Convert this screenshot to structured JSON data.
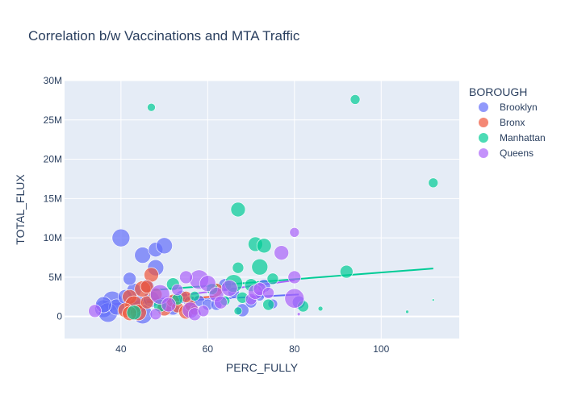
{
  "chart_data": {
    "type": "scatter",
    "title": "Correlation b/w Vaccinations and MTA Traffic",
    "xlabel": "PERC_FULLY",
    "ylabel": "TOTAL_FLUX",
    "xlim": [
      27,
      118
    ],
    "ylim": [
      -2800000,
      30000000
    ],
    "x_ticks": [
      40,
      60,
      80,
      100
    ],
    "x_tick_labels": [
      "40",
      "60",
      "80",
      "100"
    ],
    "y_ticks": [
      0,
      5000000,
      10000000,
      15000000,
      20000000,
      25000000,
      30000000
    ],
    "y_tick_labels": [
      "0",
      "5M",
      "10M",
      "15M",
      "20M",
      "25M",
      "30M"
    ],
    "grid": true,
    "legend": {
      "title": "BOROUGH",
      "placement": "right"
    },
    "series": [
      {
        "name": "Brooklyn",
        "color": "#636efa",
        "points": [
          [
            40,
            10000000,
            11
          ],
          [
            45,
            7800000,
            10
          ],
          [
            48,
            8500000,
            9
          ],
          [
            50,
            9000000,
            10
          ],
          [
            48,
            6200000,
            10
          ],
          [
            43,
            3300000,
            9
          ],
          [
            38,
            2000000,
            12
          ],
          [
            36,
            1000000,
            11
          ],
          [
            37,
            500000,
            12
          ],
          [
            39,
            1200000,
            10
          ],
          [
            41,
            2500000,
            9
          ],
          [
            44,
            1500000,
            11
          ],
          [
            45,
            300000,
            12
          ],
          [
            47,
            2200000,
            10
          ],
          [
            50,
            1500000,
            9
          ],
          [
            52,
            1000000,
            8
          ],
          [
            54,
            2500000,
            8
          ],
          [
            56,
            1800000,
            8
          ],
          [
            58,
            2000000,
            7
          ],
          [
            60,
            1500000,
            7
          ],
          [
            62,
            1500000,
            7
          ],
          [
            64,
            4000000,
            8
          ],
          [
            66,
            3000000,
            7
          ],
          [
            68,
            800000,
            8
          ],
          [
            70,
            1800000,
            7
          ],
          [
            72,
            2600000,
            6
          ],
          [
            73,
            3900000,
            8
          ],
          [
            75,
            1600000,
            6
          ],
          [
            81,
            1800000,
            8
          ],
          [
            42,
            4800000,
            8
          ],
          [
            46,
            3800000,
            9
          ],
          [
            36,
            1500000,
            10
          ]
        ],
        "trend": [
          [
            36,
            1500000
          ],
          [
            81,
            2800000
          ]
        ]
      },
      {
        "name": "Bronx",
        "color": "#ef553b",
        "points": [
          [
            47,
            5300000,
            9
          ],
          [
            45,
            3500000,
            10
          ],
          [
            42,
            2500000,
            9
          ],
          [
            43,
            1500000,
            11
          ],
          [
            41,
            800000,
            9
          ],
          [
            44,
            500000,
            10
          ],
          [
            46,
            1800000,
            8
          ],
          [
            48,
            2800000,
            8
          ],
          [
            50,
            1000000,
            9
          ],
          [
            52,
            2000000,
            8
          ],
          [
            53,
            1200000,
            7
          ],
          [
            55,
            600000,
            9
          ],
          [
            56,
            1400000,
            7
          ],
          [
            55,
            2500000,
            7
          ],
          [
            57,
            800000,
            6
          ],
          [
            62,
            3400000,
            8
          ],
          [
            42,
            400000,
            9
          ],
          [
            46,
            3800000,
            8
          ]
        ],
        "trend": [
          [
            41,
            1700000
          ],
          [
            63,
            2600000
          ]
        ]
      },
      {
        "name": "Manhattan",
        "color": "#00cc96",
        "points": [
          [
            47,
            26600000,
            5
          ],
          [
            94,
            27600000,
            6
          ],
          [
            112,
            17000000,
            6
          ],
          [
            67,
            13600000,
            9
          ],
          [
            71,
            9200000,
            9
          ],
          [
            73,
            9000000,
            9
          ],
          [
            72,
            6300000,
            10
          ],
          [
            67,
            6200000,
            7
          ],
          [
            66,
            4200000,
            11
          ],
          [
            68,
            2400000,
            7
          ],
          [
            70,
            4000000,
            8
          ],
          [
            74,
            1500000,
            7
          ],
          [
            75,
            4800000,
            7
          ],
          [
            92,
            5700000,
            8
          ],
          [
            82,
            1300000,
            7
          ],
          [
            86,
            1000000,
            3
          ],
          [
            106,
            600000,
            2
          ],
          [
            112,
            2100000,
            1.5
          ],
          [
            52,
            4100000,
            8
          ],
          [
            53,
            2200000,
            7
          ],
          [
            43,
            500000,
            9
          ],
          [
            49,
            1400000,
            8
          ],
          [
            57,
            2600000,
            6
          ],
          [
            61,
            3500000,
            7
          ],
          [
            64,
            2000000,
            6
          ],
          [
            67,
            700000,
            5
          ]
        ],
        "trend": [
          [
            46,
            3300000
          ],
          [
            112,
            6100000
          ]
        ]
      },
      {
        "name": "Queens",
        "color": "#ab63fa",
        "points": [
          [
            34,
            700000,
            8
          ],
          [
            58,
            4700000,
            12
          ],
          [
            60,
            4200000,
            10
          ],
          [
            55,
            5000000,
            8
          ],
          [
            49,
            2800000,
            12
          ],
          [
            51,
            1500000,
            9
          ],
          [
            56,
            800000,
            10
          ],
          [
            57,
            300000,
            8
          ],
          [
            59,
            700000,
            7
          ],
          [
            62,
            2800000,
            9
          ],
          [
            63,
            1800000,
            8
          ],
          [
            65,
            3600000,
            10
          ],
          [
            70,
            2200000,
            7
          ],
          [
            71,
            3100000,
            9
          ],
          [
            72,
            3500000,
            8
          ],
          [
            74,
            3000000,
            7
          ],
          [
            77,
            8100000,
            9
          ],
          [
            80,
            10700000,
            6
          ],
          [
            80,
            5000000,
            8
          ],
          [
            80,
            2300000,
            12
          ],
          [
            81,
            300000,
            2
          ],
          [
            48,
            300000,
            7
          ],
          [
            53,
            3400000,
            7
          ]
        ],
        "trend": [
          [
            34,
            1200000
          ],
          [
            80,
            4600000
          ]
        ]
      }
    ]
  }
}
